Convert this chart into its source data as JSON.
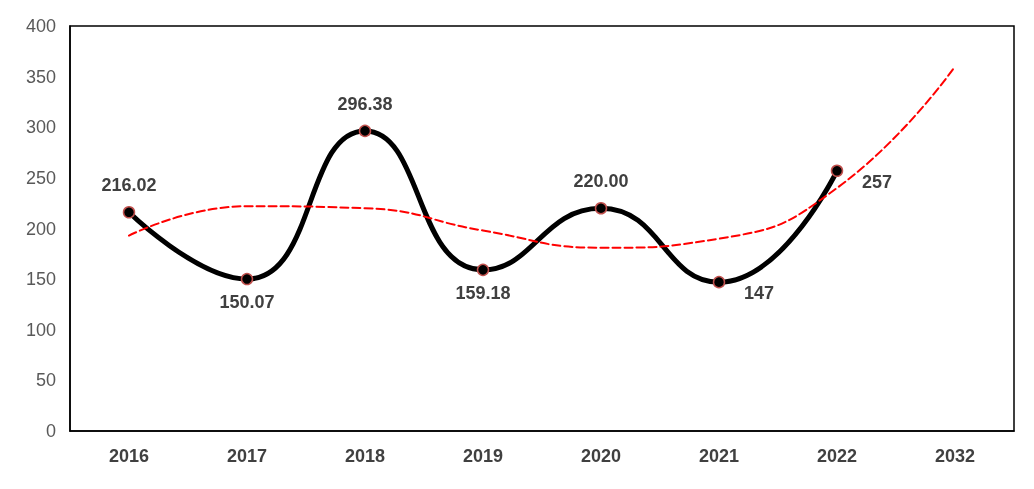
{
  "chart_data": {
    "type": "line",
    "categories": [
      "2016",
      "2017",
      "2018",
      "2019",
      "2020",
      "2021",
      "2022",
      "2032"
    ],
    "series": [
      {
        "color": "#000000",
        "values": [
          216.02,
          150.07,
          296.38,
          159.18,
          220.0,
          147,
          257,
          null
        ],
        "value_labels": [
          "216.02",
          "150.07",
          "296.38",
          "159.18",
          "220.00",
          "147",
          "257",
          null
        ],
        "marker": "circle",
        "line_style": "solid"
      },
      {
        "color": "#ff0000",
        "values": [
          193,
          222,
          220,
          198,
          181,
          190,
          240,
          360
        ],
        "marker": "none",
        "line_style": "dashed"
      }
    ],
    "ylim": [
      0,
      400
    ],
    "yticks": [
      0,
      50,
      100,
      150,
      200,
      250,
      300,
      350,
      400
    ],
    "grid": false
  }
}
